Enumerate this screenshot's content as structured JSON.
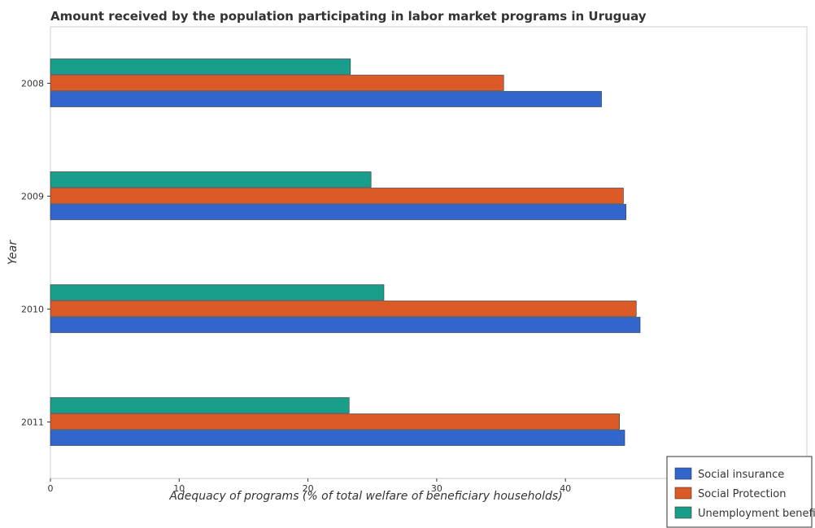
{
  "chart_data": {
    "type": "bar",
    "orientation": "horizontal",
    "title": "Amount received by the population participating in labor market programs in Uruguay",
    "xlabel": "Adequacy of programs (% of total welfare of beneficiary households)",
    "ylabel": "Year",
    "categories": [
      "2008",
      "2009",
      "2010",
      "2011"
    ],
    "xlim": [
      0,
      48
    ],
    "xticks": [
      0,
      10,
      20,
      30,
      40
    ],
    "series": [
      {
        "name": "Social insurance",
        "color": "#3366cc",
        "values": [
          42.8,
          44.7,
          45.8,
          44.6
        ]
      },
      {
        "name": "Social Protection",
        "color": "#dc5a28",
        "values": [
          35.2,
          44.5,
          45.5,
          44.2
        ]
      },
      {
        "name": "Unemployment benefits",
        "color": "#1a9e8c",
        "values": [
          23.3,
          24.9,
          25.9,
          23.2
        ]
      }
    ],
    "legend_position": "bottom-right",
    "grid": false
  }
}
